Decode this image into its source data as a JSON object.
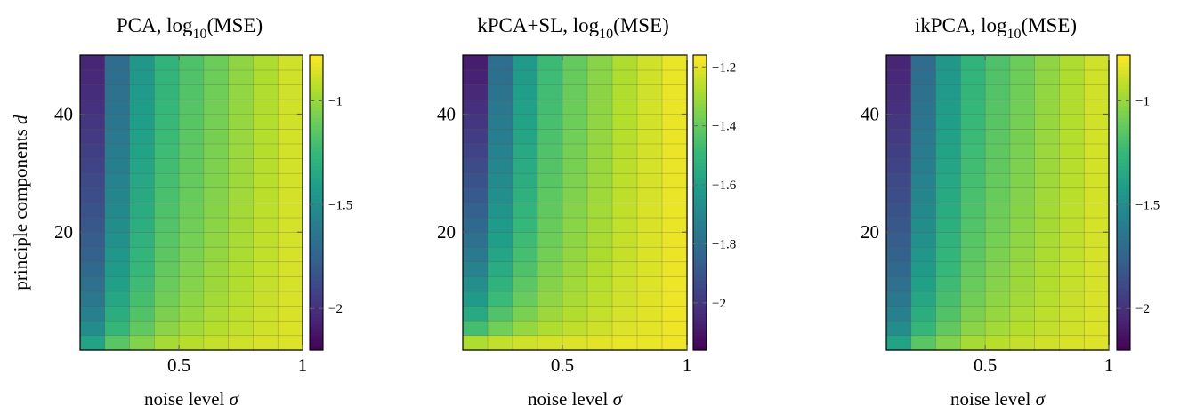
{
  "shared": {
    "xlabel": "noise level",
    "xlabel_symbol": "σ",
    "ylabel": "principle components",
    "ylabel_symbol": "d",
    "log_label": "log",
    "log_base": "10",
    "mse_label": "(MSE)",
    "x_ticks": [
      "0.5",
      "1"
    ],
    "y_ticks": [
      "20",
      "40"
    ]
  },
  "chart_data": [
    {
      "type": "heatmap",
      "title_prefix": "PCA,",
      "x_range": [
        0.1,
        1.0
      ],
      "y_range": [
        0,
        50
      ],
      "x_tick_values": [
        0.5,
        1
      ],
      "y_tick_values": [
        20,
        40
      ],
      "x_cols": [
        0.15,
        0.25,
        0.35,
        0.45,
        0.55,
        0.65,
        0.75,
        0.85,
        0.95
      ],
      "y_cells": 20,
      "colorbar": {
        "min": -2.2,
        "max": -0.78,
        "ticks": [
          -2,
          -1.5,
          -1
        ],
        "tick_labels": [
          "−2",
          "−1.5",
          "−1"
        ]
      },
      "values_at_d2": [
        -1.38,
        -1.15,
        -1.05,
        -0.97,
        -0.93,
        -0.9,
        -0.88,
        -0.86,
        -0.85
      ],
      "values_at_d48": [
        -2.05,
        -1.7,
        -1.45,
        -1.28,
        -1.18,
        -1.1,
        -1.02,
        -0.95,
        -0.88
      ],
      "gamma": 0.5
    },
    {
      "type": "heatmap",
      "title_prefix": "kPCA+SL,",
      "x_range": [
        0.1,
        1.0
      ],
      "y_range": [
        0,
        50
      ],
      "x_tick_values": [
        0.5,
        1
      ],
      "y_tick_values": [
        20,
        40
      ],
      "x_cols": [
        0.15,
        0.25,
        0.35,
        0.45,
        0.55,
        0.65,
        0.75,
        0.85,
        0.95
      ],
      "y_cells": 20,
      "colorbar": {
        "min": -2.16,
        "max": -1.16,
        "ticks": [
          -2,
          -1.8,
          -1.6,
          -1.4,
          -1.2
        ],
        "tick_labels": [
          "−2",
          "−1.8",
          "−1.6",
          "−1.4",
          "−1.2"
        ]
      },
      "values_at_d2": [
        -1.28,
        -1.25,
        -1.23,
        -1.22,
        -1.21,
        -1.2,
        -1.19,
        -1.19,
        -1.18
      ],
      "values_at_d48": [
        -2.08,
        -1.8,
        -1.62,
        -1.48,
        -1.4,
        -1.34,
        -1.28,
        -1.23,
        -1.19
      ],
      "gamma": 0.45
    },
    {
      "type": "heatmap",
      "title_prefix": "ikPCA,",
      "x_range": [
        0.1,
        1.0
      ],
      "y_range": [
        0,
        50
      ],
      "x_tick_values": [
        0.5,
        1
      ],
      "y_tick_values": [
        20,
        40
      ],
      "x_cols": [
        0.15,
        0.25,
        0.35,
        0.45,
        0.55,
        0.65,
        0.75,
        0.85,
        0.95
      ],
      "y_cells": 20,
      "colorbar": {
        "min": -2.2,
        "max": -0.78,
        "ticks": [
          -2,
          -1.5,
          -1
        ],
        "tick_labels": [
          "−2",
          "−1.5",
          "−1"
        ]
      },
      "values_at_d2": [
        -1.38,
        -1.15,
        -1.05,
        -0.97,
        -0.93,
        -0.9,
        -0.88,
        -0.86,
        -0.85
      ],
      "values_at_d48": [
        -2.05,
        -1.7,
        -1.45,
        -1.28,
        -1.18,
        -1.1,
        -1.02,
        -0.95,
        -0.88
      ],
      "gamma": 0.5
    }
  ]
}
